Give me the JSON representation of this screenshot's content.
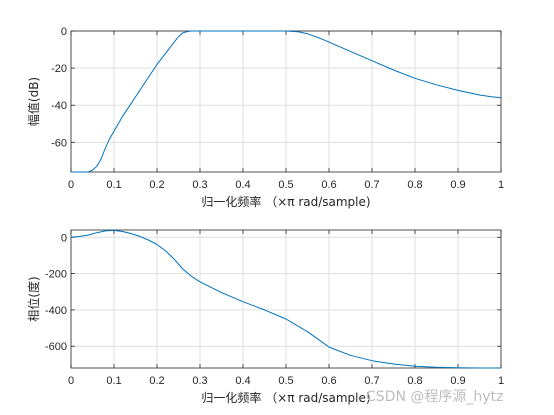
{
  "colors": {
    "line": "#0072BD",
    "grid": "#dfdfdf",
    "axis": "#262626",
    "watermark": "#bdbdbd"
  },
  "watermark": "CSDN @程序源_hytz",
  "chart_data": [
    {
      "type": "line",
      "xlabel": "归一化频率 （×π rad/sample)",
      "ylabel": "幅值(dB)",
      "xlim": [
        0,
        1
      ],
      "ylim": [
        -76,
        0
      ],
      "xticks": [
        "0",
        "0.1",
        "0.2",
        "0.3",
        "0.4",
        "0.5",
        "0.6",
        "0.7",
        "0.8",
        "0.9",
        "1"
      ],
      "yticks": [
        "0",
        "-20",
        "-40",
        "-60"
      ],
      "ytick_values": [
        0,
        -20,
        -40,
        -60
      ],
      "grid": true,
      "series": [
        {
          "x": [
            0,
            0.04,
            0.05,
            0.06,
            0.07,
            0.08,
            0.09,
            0.1,
            0.12,
            0.14,
            0.16,
            0.18,
            0.2,
            0.22,
            0.24,
            0.25,
            0.26,
            0.27,
            0.28,
            0.3,
            0.35,
            0.4,
            0.45,
            0.5,
            0.53,
            0.55,
            0.58,
            0.6,
            0.65,
            0.7,
            0.75,
            0.8,
            0.85,
            0.9,
            0.95,
            0.98,
            1.0
          ],
          "values": [
            -76,
            -76,
            -75,
            -73,
            -69,
            -63,
            -58,
            -54,
            -46,
            -39,
            -32,
            -25,
            -18,
            -12,
            -6,
            -3,
            -1,
            -0.3,
            0,
            0,
            0,
            0,
            0,
            0,
            -0.5,
            -1.5,
            -4,
            -6,
            -11,
            -16,
            -21,
            -25.5,
            -29,
            -32,
            -34.5,
            -35.5,
            -36
          ]
        }
      ]
    },
    {
      "type": "line",
      "xlabel": "归一化频率 （×π rad/sample)",
      "ylabel": "相位(度)",
      "xlim": [
        0,
        1
      ],
      "ylim": [
        -720,
        40
      ],
      "xticks": [
        "0",
        "0.1",
        "0.2",
        "0.3",
        "0.4",
        "0.5",
        "0.6",
        "0.7",
        "0.8",
        "0.9",
        "1"
      ],
      "yticks": [
        "0",
        "-200",
        "-400",
        "-600"
      ],
      "ytick_values": [
        0,
        -200,
        -400,
        -600
      ],
      "grid": true,
      "series": [
        {
          "x": [
            0,
            0.02,
            0.04,
            0.06,
            0.08,
            0.1,
            0.12,
            0.14,
            0.16,
            0.18,
            0.2,
            0.22,
            0.24,
            0.26,
            0.28,
            0.3,
            0.35,
            0.4,
            0.45,
            0.5,
            0.52,
            0.55,
            0.58,
            0.6,
            0.65,
            0.7,
            0.75,
            0.8,
            0.85,
            0.9,
            0.95,
            1.0
          ],
          "values": [
            0,
            5,
            12,
            25,
            35,
            38,
            32,
            20,
            5,
            -15,
            -40,
            -75,
            -120,
            -175,
            -215,
            -245,
            -305,
            -355,
            -400,
            -450,
            -478,
            -520,
            -570,
            -605,
            -650,
            -680,
            -698,
            -710,
            -716,
            -719,
            -720,
            -720
          ]
        }
      ]
    }
  ]
}
